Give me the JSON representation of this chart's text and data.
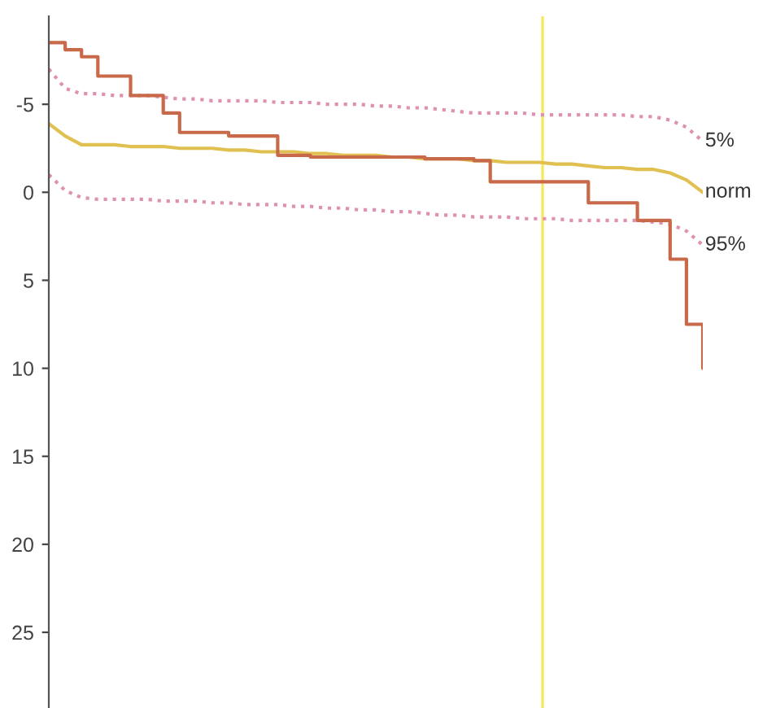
{
  "chart_data": {
    "type": "line",
    "tick_labels": "y",
    "categories": [
      null,
      null,
      null,
      null,
      null,
      null,
      null,
      null,
      null,
      null,
      null,
      null,
      null,
      null,
      null,
      null,
      null,
      null,
      null,
      null,
      null,
      null,
      null,
      null,
      null,
      null,
      null,
      null,
      null,
      null,
      null,
      null,
      null,
      null,
      null,
      null,
      null,
      null,
      null,
      null,
      null
    ],
    "ylim": [
      29.3,
      -10
    ],
    "yticks": [
      -5,
      0,
      5,
      10,
      15,
      20,
      25
    ],
    "grid": false,
    "legend": false,
    "series": [
      {
        "name": "5%",
        "color": "#e090b0",
        "line_style": "dotted",
        "values": [
          -7.0,
          -5.9,
          -5.6,
          -5.6,
          -5.5,
          -5.5,
          -5.5,
          -5.4,
          -5.3,
          -5.3,
          -5.2,
          -5.2,
          -5.2,
          -5.2,
          -5.1,
          -5.1,
          -5.1,
          -5.0,
          -5.0,
          -5.0,
          -4.9,
          -4.9,
          -4.8,
          -4.8,
          -4.7,
          -4.6,
          -4.5,
          -4.5,
          -4.5,
          -4.5,
          -4.4,
          -4.4,
          -4.4,
          -4.4,
          -4.4,
          -4.4,
          -4.3,
          -4.3,
          -4.1,
          -3.7,
          -2.9
        ]
      },
      {
        "name": "norm",
        "color": "#e0c050",
        "line_style": "solid",
        "values": [
          -3.9,
          -3.2,
          -2.7,
          -2.7,
          -2.7,
          -2.6,
          -2.6,
          -2.6,
          -2.5,
          -2.5,
          -2.5,
          -2.4,
          -2.4,
          -2.3,
          -2.3,
          -2.3,
          -2.2,
          -2.2,
          -2.1,
          -2.1,
          -2.1,
          -2.0,
          -2.0,
          -1.9,
          -1.9,
          -1.9,
          -1.8,
          -1.8,
          -1.7,
          -1.7,
          -1.7,
          -1.6,
          -1.6,
          -1.5,
          -1.4,
          -1.4,
          -1.3,
          -1.3,
          -1.1,
          -0.7,
          0.0
        ]
      },
      {
        "name": "95%",
        "color": "#e090b0",
        "line_style": "dotted",
        "values": [
          -1.0,
          -0.1,
          0.3,
          0.4,
          0.4,
          0.4,
          0.4,
          0.5,
          0.5,
          0.5,
          0.6,
          0.6,
          0.7,
          0.7,
          0.7,
          0.8,
          0.8,
          0.9,
          0.9,
          1.0,
          1.0,
          1.1,
          1.1,
          1.2,
          1.3,
          1.3,
          1.4,
          1.4,
          1.4,
          1.5,
          1.5,
          1.5,
          1.6,
          1.6,
          1.6,
          1.6,
          1.6,
          1.7,
          1.8,
          2.2,
          3.0
        ]
      },
      {
        "type": "step",
        "color": "#c86a4a",
        "line_style": "solid",
        "values": [
          -8.5,
          -8.1,
          -7.7,
          -6.6,
          -6.6,
          -5.5,
          -5.5,
          -4.5,
          -3.4,
          -3.4,
          -3.4,
          -3.2,
          -3.2,
          -3.2,
          -2.1,
          -2.1,
          -2.0,
          -2.0,
          -2.0,
          -2.0,
          -2.0,
          -2.0,
          -2.0,
          -1.9,
          -1.9,
          -1.9,
          -1.8,
          -0.6,
          -0.6,
          -0.6,
          -0.6,
          -0.6,
          -0.6,
          0.6,
          0.6,
          0.6,
          1.6,
          1.6,
          3.8,
          7.5,
          10.0
        ]
      }
    ]
  }
}
